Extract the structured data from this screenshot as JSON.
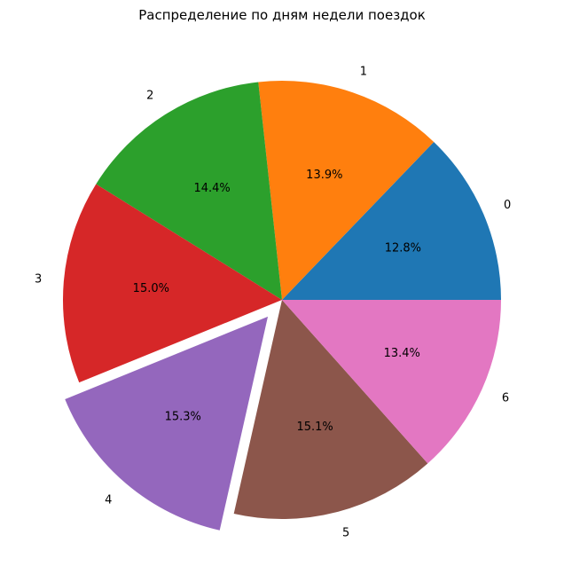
{
  "chart_data": {
    "type": "pie",
    "title": "Распределение по дням недели поездок",
    "categories": [
      "0",
      "1",
      "2",
      "3",
      "4",
      "5",
      "6"
    ],
    "values": [
      12.8,
      13.9,
      14.4,
      15.0,
      15.3,
      15.1,
      13.4
    ],
    "value_labels": [
      "12.8%",
      "13.9%",
      "14.4%",
      "15.0%",
      "15.3%",
      "15.1%",
      "13.4%"
    ],
    "exploded": [
      false,
      false,
      false,
      false,
      true,
      false,
      false
    ],
    "colors": [
      "#1f77b4",
      "#ff7f0e",
      "#2ca02c",
      "#d62728",
      "#9467bd",
      "#8c564b",
      "#e377c2"
    ],
    "start_angle_deg": 0,
    "direction": "counterclockwise"
  }
}
